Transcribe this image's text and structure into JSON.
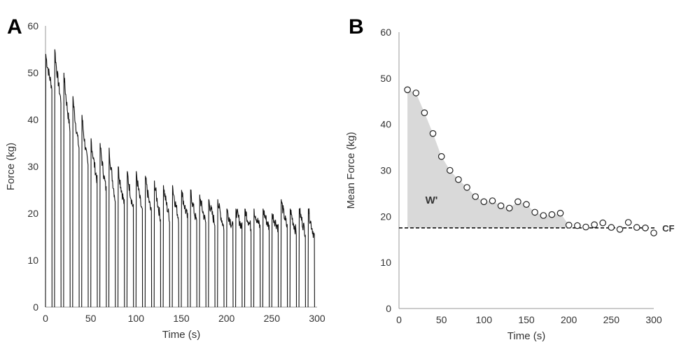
{
  "chart_data": [
    {
      "type": "line",
      "panel_label": "A",
      "xlabel": "Time (s)",
      "ylabel": "Force (kg)",
      "xlim": [
        0,
        300
      ],
      "ylim": [
        0,
        60
      ],
      "x_ticks": [
        0,
        50,
        100,
        150,
        200,
        250,
        300
      ],
      "y_ticks": [
        0,
        10,
        20,
        30,
        40,
        50,
        60
      ],
      "grid": false,
      "line_color": "#111111",
      "series": [
        {
          "contraction_starts": [
            0,
            10,
            20,
            30,
            40,
            50,
            60,
            70,
            80,
            90,
            100,
            110,
            120,
            130,
            140,
            150,
            160,
            170,
            180,
            190,
            200,
            210,
            220,
            230,
            240,
            250,
            260,
            270,
            280,
            290
          ],
          "contraction_peak_force": [
            54,
            55,
            50,
            45,
            41,
            36,
            35,
            34,
            30,
            29,
            29,
            28,
            27,
            26,
            26,
            25,
            25,
            24,
            23,
            23,
            21,
            21,
            21,
            21,
            21,
            20,
            23,
            21,
            21,
            21
          ],
          "contraction_end_force": [
            47,
            44,
            38,
            34,
            30,
            27,
            25,
            23,
            22,
            21,
            20,
            20,
            19,
            19,
            19,
            19,
            18,
            18,
            18,
            17,
            17,
            17,
            17,
            17,
            17,
            17,
            17,
            16,
            16,
            15
          ]
        }
      ]
    },
    {
      "type": "scatter",
      "panel_label": "B",
      "xlabel": "Time (s)",
      "ylabel": "Mean Force (kg)",
      "xlim": [
        0,
        300
      ],
      "ylim": [
        0,
        60
      ],
      "x_ticks": [
        0,
        50,
        100,
        150,
        200,
        250,
        300
      ],
      "y_ticks": [
        0,
        10,
        20,
        30,
        40,
        50,
        60
      ],
      "grid": false,
      "series": [
        {
          "x": [
            10,
            20,
            30,
            40,
            50,
            60,
            70,
            80,
            90,
            100,
            110,
            120,
            130,
            140,
            150,
            160,
            170,
            180,
            190,
            200,
            210,
            220,
            230,
            240,
            250,
            260,
            270,
            280,
            290,
            300
          ],
          "y": [
            47.5,
            46.8,
            42.5,
            38.0,
            33.0,
            30.0,
            28.0,
            26.3,
            24.3,
            23.2,
            23.4,
            22.3,
            21.8,
            23.2,
            22.6,
            20.9,
            20.2,
            20.4,
            20.7,
            18.1,
            18.0,
            17.7,
            18.2,
            18.6,
            17.6,
            17.2,
            18.7,
            17.6,
            17.5,
            16.4
          ]
        }
      ],
      "critical_force": {
        "label": "CF",
        "value": 17.5
      },
      "w_prime": {
        "label": "W'",
        "fill_color": "#d9d9d9"
      }
    }
  ]
}
